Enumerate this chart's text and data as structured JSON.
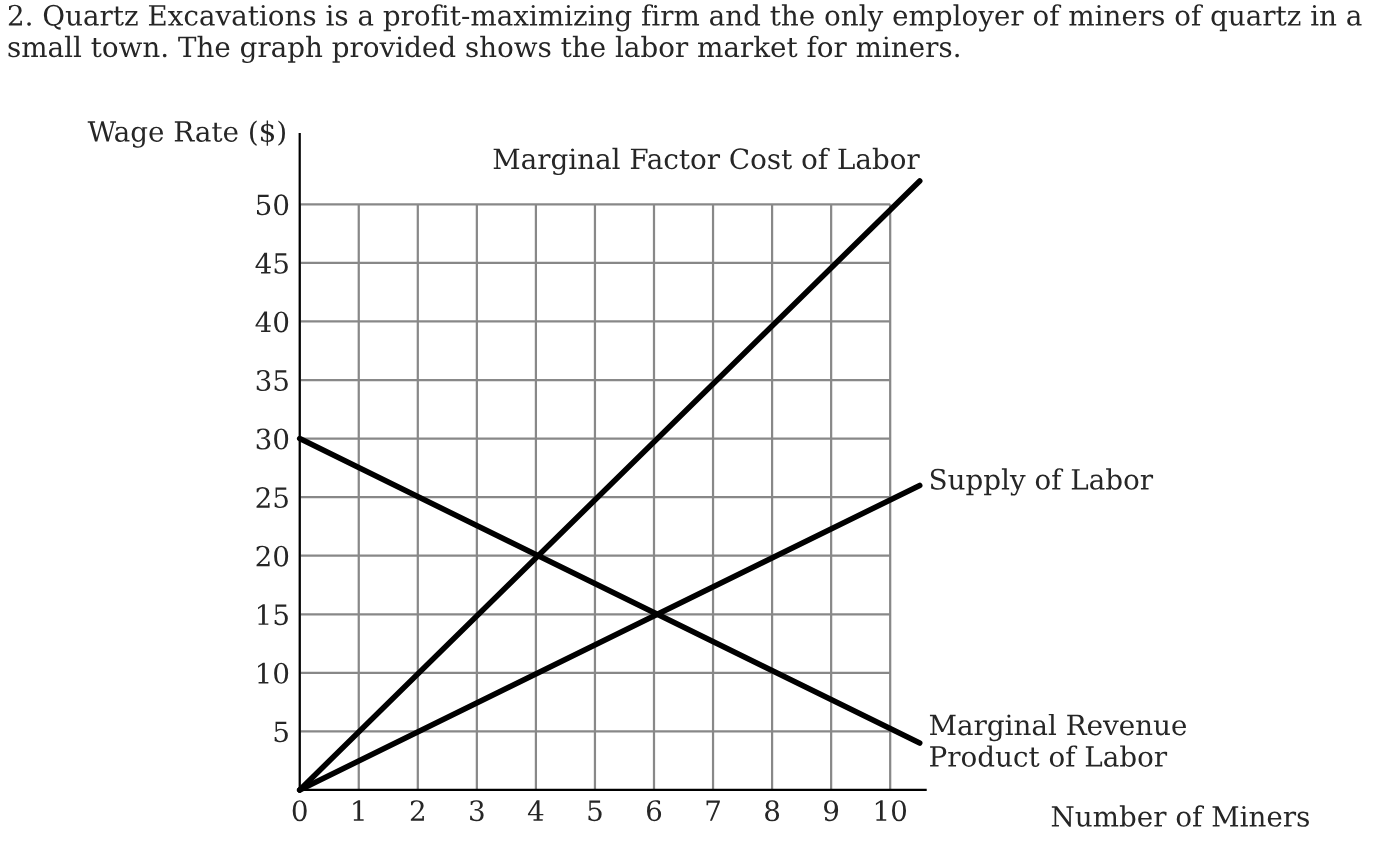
{
  "chart_data": {
    "type": "line",
    "title": "2. Quartz Excavations is a profit-maximizing firm and the only employer of miners of quartz in a small town. The graph provided shows the labor market for miners.",
    "xlabel": "Number of Miners",
    "ylabel": "Wage Rate ($)",
    "x": [
      0,
      10.5
    ],
    "series": [
      {
        "name": "Marginal Factor Cost of Labor",
        "color": "#000000",
        "values": [
          0,
          52
        ]
      },
      {
        "name": "Supply of Labor",
        "color": "#000000",
        "values": [
          0,
          26
        ]
      },
      {
        "name": "Marginal Revenue\nProduct of Labor",
        "color": "#000000",
        "values": [
          30,
          4
        ]
      }
    ],
    "xlim": [
      0,
      10.6
    ],
    "ylim": [
      0,
      56
    ],
    "xticks": [
      0,
      1,
      2,
      3,
      4,
      5,
      6,
      7,
      8,
      9,
      10
    ],
    "yticks": [
      5,
      10,
      15,
      20,
      25,
      30,
      35,
      40,
      45,
      50
    ],
    "grid": true,
    "legend": false,
    "marker": "none",
    "line_style": "solid"
  }
}
